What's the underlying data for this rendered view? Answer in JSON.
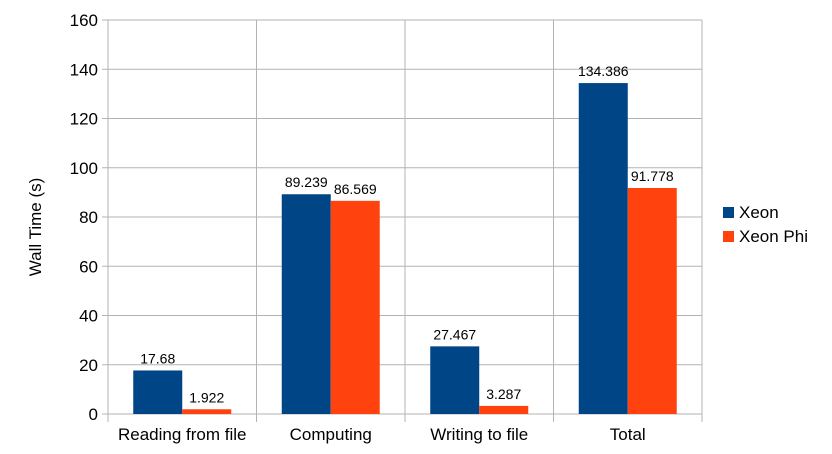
{
  "chart_data": {
    "type": "bar",
    "title": "",
    "xlabel": "",
    "ylabel": "Wall Time (s)",
    "categories": [
      "Reading from file",
      "Computing",
      "Writing to file",
      "Total"
    ],
    "series": [
      {
        "name": "Xeon",
        "color": "#004586",
        "values": [
          17.68,
          89.239,
          27.467,
          134.386
        ],
        "labels": [
          "17.68",
          "89.239",
          "27.467",
          "134.386"
        ]
      },
      {
        "name": "Xeon Phi",
        "color": "#ff420e",
        "values": [
          1.922,
          86.569,
          3.287,
          91.778
        ],
        "labels": [
          "1.922",
          "86.569",
          "3.287",
          "91.778"
        ]
      }
    ],
    "ylim": [
      0,
      160
    ],
    "yticks": [
      0,
      20,
      40,
      60,
      80,
      100,
      120,
      140,
      160
    ],
    "grid": true,
    "legend": "right"
  }
}
